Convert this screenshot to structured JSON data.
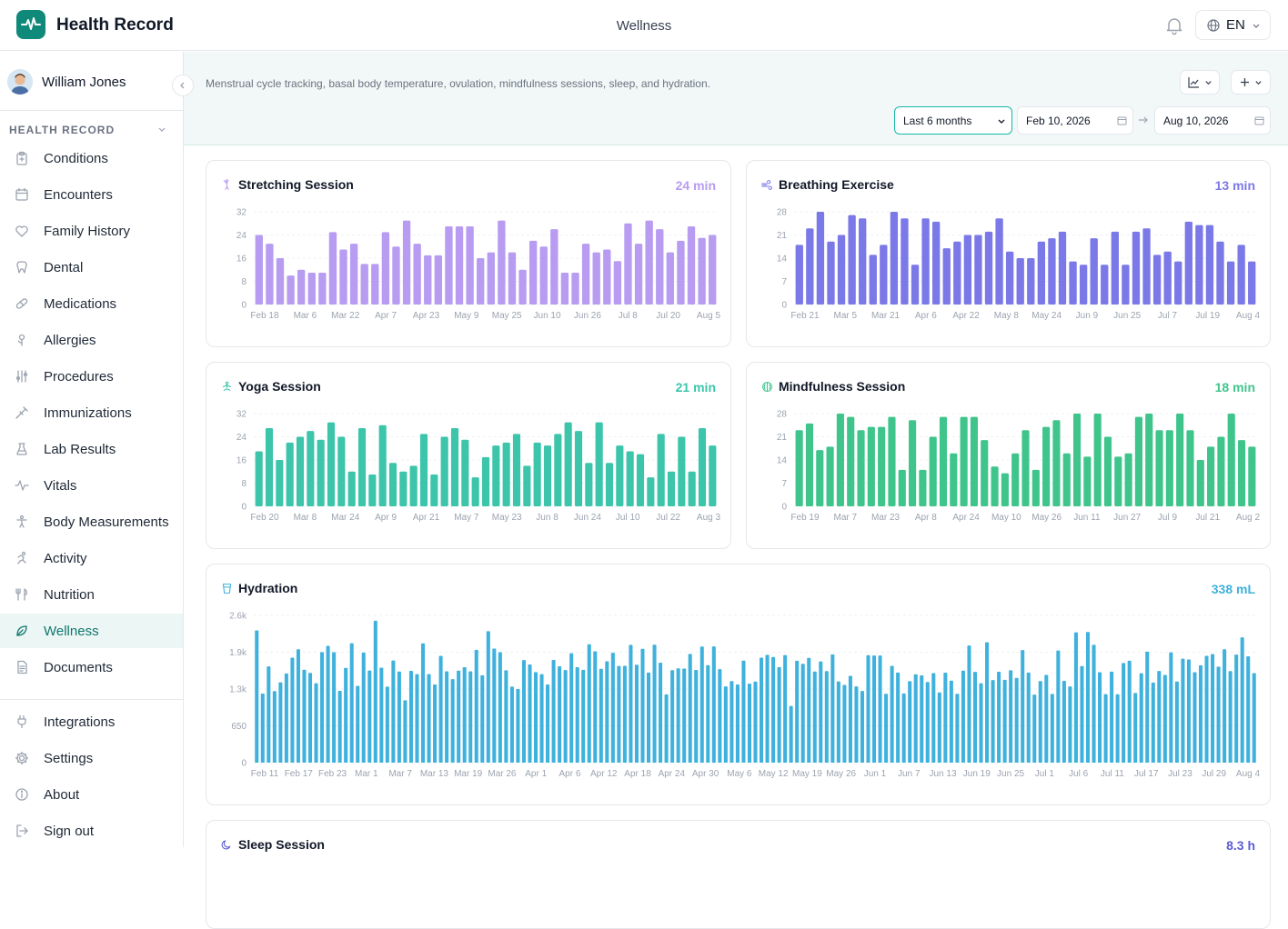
{
  "app": {
    "title": "Health Record",
    "page_title": "Wellness",
    "language": "EN"
  },
  "icons": {
    "logo": "heartbeat-icon",
    "bell": "bell-icon",
    "globe": "globe-icon"
  },
  "colors": {
    "brand": "#0f8a7a",
    "active_nav": "#0f766e"
  },
  "user": {
    "name": "William Jones"
  },
  "sidebar": {
    "section_label": "HEALTH RECORD",
    "items": [
      {
        "label": "Conditions",
        "icon": "clipboard-icon"
      },
      {
        "label": "Encounters",
        "icon": "calendar-icon"
      },
      {
        "label": "Family History",
        "icon": "heart-icon"
      },
      {
        "label": "Dental",
        "icon": "tooth-icon"
      },
      {
        "label": "Medications",
        "icon": "pill-icon"
      },
      {
        "label": "Allergies",
        "icon": "flower-icon"
      },
      {
        "label": "Procedures",
        "icon": "tools-icon"
      },
      {
        "label": "Immunizations",
        "icon": "syringe-icon"
      },
      {
        "label": "Lab Results",
        "icon": "flask-icon"
      },
      {
        "label": "Vitals",
        "icon": "pulse-icon"
      },
      {
        "label": "Body Measurements",
        "icon": "body-icon"
      },
      {
        "label": "Activity",
        "icon": "running-icon"
      },
      {
        "label": "Nutrition",
        "icon": "utensils-icon"
      },
      {
        "label": "Wellness",
        "icon": "leaf-icon",
        "active": true
      },
      {
        "label": "Documents",
        "icon": "document-icon"
      }
    ],
    "footer_items": [
      {
        "label": "Integrations",
        "icon": "plug-icon"
      },
      {
        "label": "Settings",
        "icon": "gear-icon"
      },
      {
        "label": "About",
        "icon": "info-icon"
      },
      {
        "label": "Sign out",
        "icon": "sign-out-icon"
      }
    ]
  },
  "filters": {
    "description": "Menstrual cycle tracking, basal body temperature, ovulation, mindfulness sessions, sleep, and hydration.",
    "range": "Last 6 months",
    "start_date": "Feb 10, 2026",
    "end_date": "Aug 10, 2026"
  },
  "cards": [
    {
      "title": "Stretching Session",
      "value": "24 min",
      "color": "#b79cf1",
      "icon": "stretch-icon"
    },
    {
      "title": "Breathing Exercise",
      "value": "13 min",
      "color": "#7b78e8",
      "icon": "wind-icon"
    },
    {
      "title": "Yoga Session",
      "value": "21 min",
      "color": "#3cc5aa",
      "icon": "yoga-icon"
    },
    {
      "title": "Mindfulness Session",
      "value": "18 min",
      "color": "#3fc58c",
      "icon": "brain-icon"
    },
    {
      "title": "Hydration",
      "value": "338 mL",
      "color": "#3fb1dd",
      "icon": "cup-icon"
    },
    {
      "title": "Sleep Session",
      "value": "8.3 h",
      "color": "#5b5bd6",
      "icon": "moon-icon"
    }
  ],
  "chart_data": [
    {
      "type": "bar",
      "title": "Stretching Session",
      "yticks": [
        "0",
        "8",
        "16",
        "24",
        "32"
      ],
      "ylim": [
        0,
        32
      ],
      "xticks": [
        "Feb 18",
        "Mar 6",
        "Mar 22",
        "Apr 7",
        "Apr 23",
        "May 9",
        "May 25",
        "Jun 10",
        "Jun 26",
        "Jul 8",
        "Jul 20",
        "Aug 5"
      ],
      "values": [
        24,
        21,
        16,
        10,
        12,
        11,
        11,
        25,
        19,
        21,
        14,
        14,
        25,
        20,
        29,
        21,
        17,
        17,
        27,
        27,
        27,
        16,
        18,
        29,
        18,
        12,
        22,
        20,
        26,
        11,
        11,
        21,
        18,
        19,
        15,
        28,
        21,
        29,
        26,
        18,
        22,
        27,
        23,
        24
      ]
    },
    {
      "type": "bar",
      "title": "Breathing Exercise",
      "yticks": [
        "0",
        "7",
        "14",
        "21",
        "28"
      ],
      "ylim": [
        0,
        28
      ],
      "xticks": [
        "Feb 21",
        "Mar 5",
        "Mar 21",
        "Apr 6",
        "Apr 22",
        "May 8",
        "May 24",
        "Jun 9",
        "Jun 25",
        "Jul 7",
        "Jul 19",
        "Aug 4"
      ],
      "values": [
        18,
        23,
        28,
        19,
        21,
        27,
        26,
        15,
        18,
        28,
        26,
        12,
        26,
        25,
        17,
        19,
        21,
        21,
        22,
        26,
        16,
        14,
        14,
        19,
        20,
        22,
        13,
        12,
        20,
        12,
        22,
        12,
        22,
        23,
        15,
        16,
        13,
        25,
        24,
        24,
        19,
        13,
        18,
        13
      ]
    },
    {
      "type": "bar",
      "title": "Yoga Session",
      "yticks": [
        "0",
        "8",
        "16",
        "24",
        "32"
      ],
      "ylim": [
        0,
        32
      ],
      "xticks": [
        "Feb 20",
        "Mar 8",
        "Mar 24",
        "Apr 9",
        "Apr 21",
        "May 7",
        "May 23",
        "Jun 8",
        "Jun 24",
        "Jul 10",
        "Jul 22",
        "Aug 3"
      ],
      "values": [
        19,
        27,
        16,
        22,
        24,
        26,
        23,
        29,
        24,
        12,
        27,
        11,
        28,
        15,
        12,
        14,
        25,
        11,
        24,
        27,
        23,
        10,
        17,
        21,
        22,
        25,
        14,
        22,
        21,
        25,
        29,
        26,
        15,
        29,
        15,
        21,
        19,
        18,
        10,
        25,
        12,
        24,
        12,
        27,
        21
      ]
    },
    {
      "type": "bar",
      "title": "Mindfulness Session",
      "yticks": [
        "0",
        "7",
        "14",
        "21",
        "28"
      ],
      "ylim": [
        0,
        28
      ],
      "xticks": [
        "Feb 19",
        "Mar 7",
        "Mar 23",
        "Apr 8",
        "Apr 24",
        "May 10",
        "May 26",
        "Jun 11",
        "Jun 27",
        "Jul 9",
        "Jul 21",
        "Aug 2"
      ],
      "values": [
        23,
        25,
        17,
        18,
        28,
        27,
        23,
        24,
        24,
        27,
        11,
        26,
        11,
        21,
        27,
        16,
        27,
        27,
        20,
        12,
        10,
        16,
        23,
        11,
        24,
        26,
        16,
        28,
        15,
        28,
        21,
        15,
        16,
        27,
        28,
        23,
        23,
        28,
        23,
        14,
        18,
        21,
        28,
        20,
        18
      ]
    },
    {
      "type": "bar",
      "title": "Hydration",
      "yticks": [
        "0",
        "650",
        "1.3k",
        "1.9k",
        "2.6k"
      ],
      "ylim": [
        0,
        2600
      ],
      "xticks": [
        "Feb 11",
        "Feb 17",
        "Feb 23",
        "Mar 1",
        "Mar 7",
        "Mar 13",
        "Mar 19",
        "Mar 26",
        "Apr 1",
        "Apr 6",
        "Apr 12",
        "Apr 18",
        "Apr 24",
        "Apr 30",
        "May 6",
        "May 12",
        "May 19",
        "May 26",
        "Jun 1",
        "Jun 7",
        "Jun 13",
        "Jun 19",
        "Jun 25",
        "Jul 1",
        "Jul 6",
        "Jul 11",
        "Jul 17",
        "Jul 23",
        "Jul 29",
        "Aug 4"
      ],
      "values": [
        2335,
        1220,
        1700,
        1263,
        1418,
        1574,
        1853,
        2002,
        1641,
        1584,
        1402,
        1952,
        2062,
        1949,
        1268,
        1674,
        2109,
        1356,
        1944,
        1627,
        2505,
        1678,
        1342,
        1804,
        1608,
        1101,
        1620,
        1563,
        2107,
        1563,
        1381,
        1885,
        1612,
        1475,
        1624,
        1685,
        1612,
        1992,
        1542,
        2322,
        2014,
        1949,
        1631,
        1342,
        1300,
        1812,
        1734,
        1599,
        1563,
        1380,
        1813,
        1702,
        1635,
        1932,
        1685,
        1640,
        2090,
        1966,
        1657,
        1789,
        1940,
        1708,
        1710,
        2080,
        1729,
        2011,
        1590,
        2083,
        1766,
        1206,
        1634,
        1666,
        1661,
        1920,
        1637,
        2051,
        1721,
        2053,
        1651,
        1346,
        1440,
        1380,
        1802,
        1394,
        1432,
        1853,
        1904,
        1866,
        1688,
        1900,
        1001,
        1799,
        1745,
        1850,
        1608,
        1788,
        1617,
        1911,
        1435,
        1372,
        1533,
        1346,
        1266,
        1897,
        1891,
        1891,
        1215,
        1709,
        1591,
        1221,
        1439,
        1560,
        1541,
        1425,
        1581,
        1239,
        1588,
        1448,
        1215,
        1624,
        2069,
        1603,
        1402,
        2126,
        1458,
        1604,
        1463,
        1632,
        1497,
        1988,
        1590,
        1201,
        1441,
        1549,
        1214,
        1981,
        1445,
        1347,
        2302,
        1706,
        2307,
        2081,
        1596,
        1209,
        1606,
        1208,
        1760,
        1800,
        1229,
        1578,
        1961,
        1414,
        1619,
        1549,
        1948,
        1432,
        1835,
        1822,
        1596,
        1719,
        1886,
        1917,
        1696,
        2002,
        1617,
        1907,
        2213,
        1877,
        1580
      ]
    }
  ]
}
